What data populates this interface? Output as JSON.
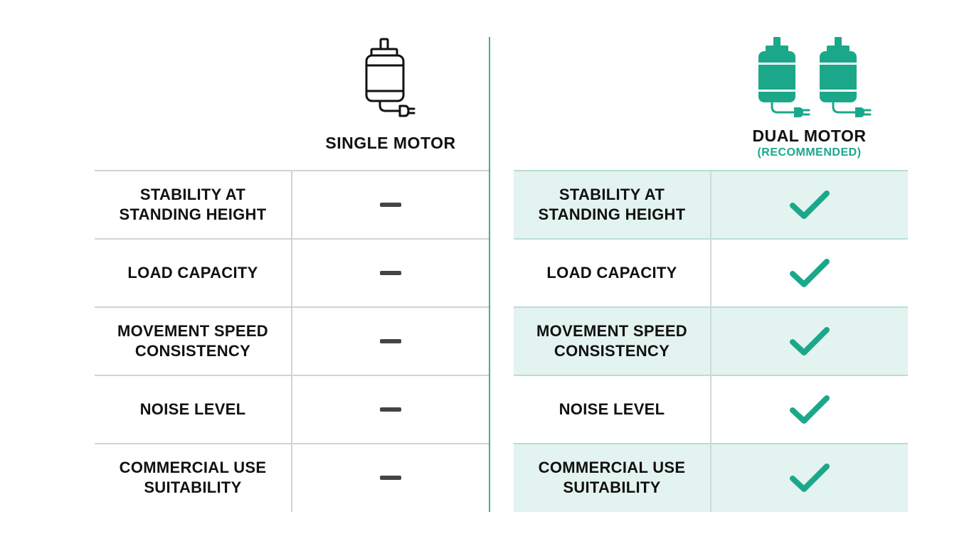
{
  "colors": {
    "accent": "#1ba88a",
    "row_shade": "#e3f3ef",
    "dash": "#444444",
    "text": "#111111"
  },
  "single": {
    "title": "SINGLE MOTOR",
    "icon": "single-motor-icon",
    "value_icon": "dash-icon"
  },
  "dual": {
    "title": "DUAL MOTOR",
    "subtitle": "(RECOMMENDED)",
    "icon": "dual-motor-icon",
    "value_icon": "check-icon"
  },
  "rows": [
    {
      "lines": [
        "STABILITY AT",
        "STANDING HEIGHT"
      ]
    },
    {
      "lines": [
        "LOAD CAPACITY"
      ]
    },
    {
      "lines": [
        "MOVEMENT SPEED",
        "CONSISTENCY"
      ]
    },
    {
      "lines": [
        "NOISE LEVEL"
      ]
    },
    {
      "lines": [
        "COMMERCIAL USE",
        "SUITABILITY"
      ]
    }
  ]
}
